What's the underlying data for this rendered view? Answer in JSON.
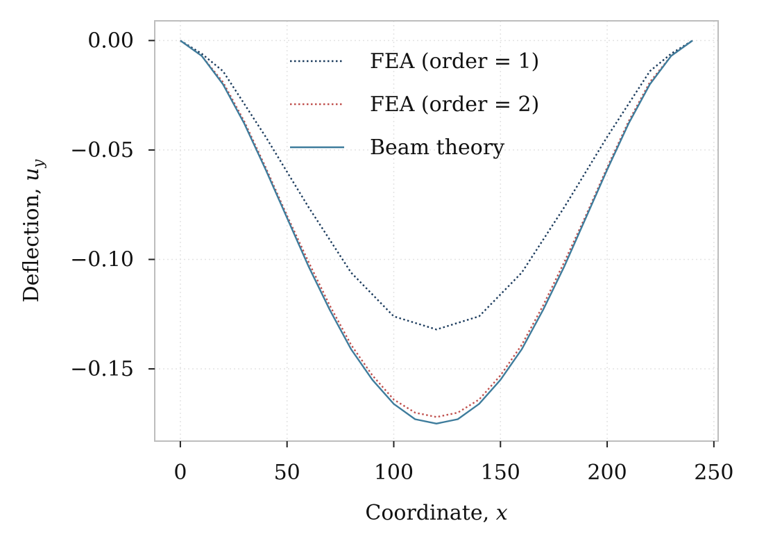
{
  "chart_data": {
    "type": "line",
    "xlabel": "Coordinate, x",
    "ylabel": "Deflection, u_y",
    "xlim": [
      -12,
      252
    ],
    "ylim": [
      -0.183,
      0.009
    ],
    "xticks": [
      0,
      50,
      100,
      150,
      200,
      250
    ],
    "yticks": [
      0.0,
      -0.05,
      -0.1,
      -0.15
    ],
    "xtick_labels": [
      "0",
      "50",
      "100",
      "150",
      "200",
      "250"
    ],
    "ytick_labels": [
      "0.00",
      "−0.05",
      "−0.10",
      "−0.15"
    ],
    "grid": true,
    "legend_position": "top-center",
    "series": [
      {
        "name": "FEA (order = 1)",
        "color": "#1a3a5c",
        "style": "dotted",
        "x": [
          0,
          10,
          20,
          30,
          40,
          50,
          60,
          70,
          80,
          90,
          100,
          110,
          120,
          130,
          140,
          150,
          160,
          170,
          180,
          190,
          200,
          210,
          220,
          230,
          240
        ],
        "y": [
          0.0,
          -0.006,
          -0.014,
          -0.029,
          -0.044,
          -0.06,
          -0.076,
          -0.091,
          -0.106,
          -0.116,
          -0.126,
          -0.129,
          -0.132,
          -0.129,
          -0.126,
          -0.116,
          -0.106,
          -0.091,
          -0.076,
          -0.06,
          -0.044,
          -0.029,
          -0.014,
          -0.006,
          0.0
        ]
      },
      {
        "name": "FEA (order = 2)",
        "color": "#c0504d",
        "style": "dotted",
        "x": [
          0,
          10,
          20,
          30,
          40,
          50,
          60,
          70,
          80,
          90,
          100,
          110,
          120,
          130,
          140,
          150,
          160,
          170,
          180,
          190,
          200,
          210,
          220,
          230,
          240
        ],
        "y": [
          0.0,
          -0.007,
          -0.019,
          -0.037,
          -0.058,
          -0.08,
          -0.101,
          -0.121,
          -0.139,
          -0.153,
          -0.164,
          -0.17,
          -0.172,
          -0.17,
          -0.164,
          -0.153,
          -0.139,
          -0.121,
          -0.101,
          -0.08,
          -0.058,
          -0.037,
          -0.019,
          -0.007,
          0.0
        ]
      },
      {
        "name": "Beam theory",
        "color": "#3e7c9c",
        "style": "solid",
        "x": [
          0,
          10,
          20,
          30,
          40,
          50,
          60,
          70,
          80,
          90,
          100,
          110,
          120,
          130,
          140,
          150,
          160,
          170,
          180,
          190,
          200,
          210,
          220,
          230,
          240
        ],
        "y": [
          0.0,
          -0.007,
          -0.02,
          -0.038,
          -0.059,
          -0.081,
          -0.103,
          -0.123,
          -0.141,
          -0.155,
          -0.166,
          -0.173,
          -0.175,
          -0.173,
          -0.166,
          -0.155,
          -0.141,
          -0.123,
          -0.103,
          -0.081,
          -0.059,
          -0.038,
          -0.02,
          -0.007,
          0.0
        ]
      }
    ]
  }
}
